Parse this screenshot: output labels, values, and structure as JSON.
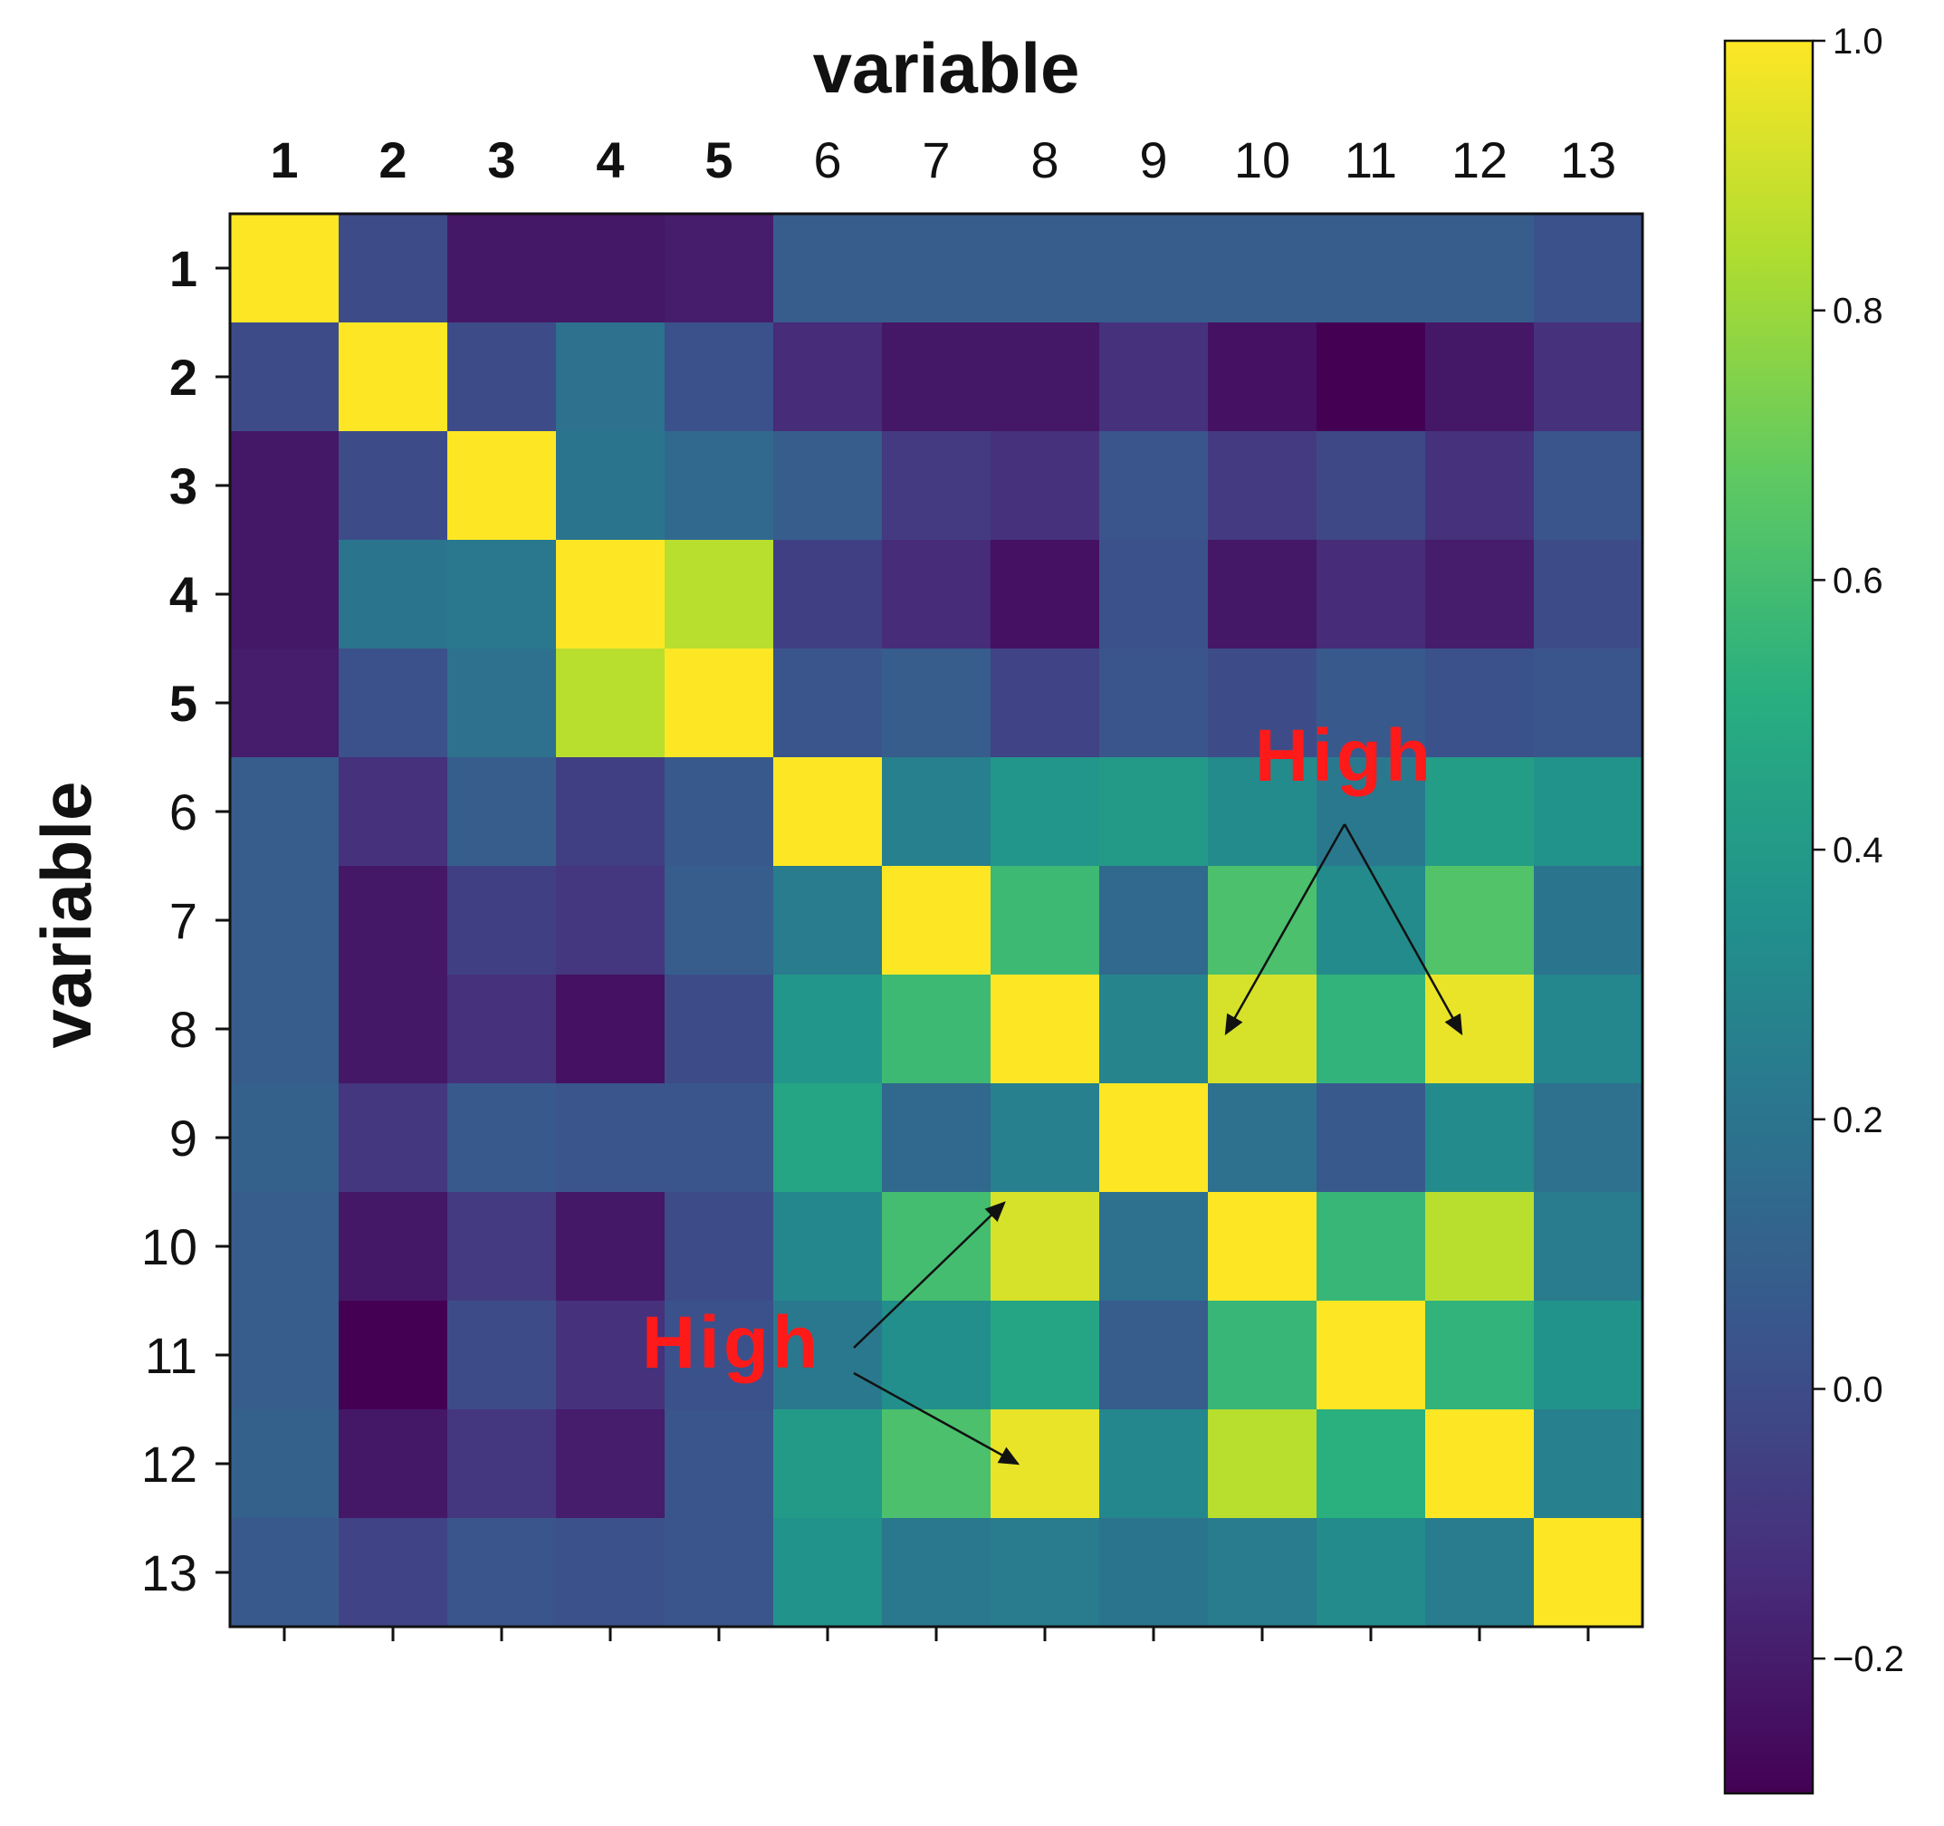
{
  "chart_data": {
    "type": "heatmap",
    "title": "variable",
    "xlabel": "variable",
    "ylabel": "variable",
    "row_labels": [
      "1",
      "2",
      "3",
      "4",
      "5",
      "6",
      "7",
      "8",
      "9",
      "10",
      "11",
      "12",
      "13"
    ],
    "col_labels": [
      "1",
      "2",
      "3",
      "4",
      "5",
      "6",
      "7",
      "8",
      "9",
      "10",
      "11",
      "12",
      "13"
    ],
    "values": [
      [
        1.0,
        0.0,
        -0.22,
        -0.22,
        -0.2,
        0.08,
        0.08,
        0.08,
        0.08,
        0.08,
        0.08,
        0.08,
        0.02
      ],
      [
        0.0,
        1.0,
        0.0,
        0.18,
        0.02,
        -0.14,
        -0.22,
        -0.22,
        -0.12,
        -0.24,
        -0.3,
        -0.22,
        -0.12
      ],
      [
        -0.22,
        0.0,
        1.0,
        0.2,
        0.14,
        0.08,
        -0.08,
        -0.12,
        0.04,
        -0.08,
        -0.02,
        -0.12,
        0.04
      ],
      [
        -0.22,
        0.2,
        0.22,
        1.0,
        0.86,
        -0.06,
        -0.14,
        -0.24,
        0.02,
        -0.22,
        -0.14,
        -0.2,
        0.0
      ],
      [
        -0.2,
        0.02,
        0.18,
        0.86,
        1.0,
        0.04,
        0.08,
        -0.04,
        0.04,
        0.0,
        0.06,
        0.02,
        0.04
      ],
      [
        0.08,
        -0.12,
        0.08,
        -0.06,
        0.06,
        1.0,
        0.26,
        0.38,
        0.4,
        0.32,
        0.22,
        0.42,
        0.36
      ],
      [
        0.08,
        -0.22,
        -0.06,
        -0.1,
        0.08,
        0.24,
        1.0,
        0.58,
        0.14,
        0.62,
        0.32,
        0.64,
        0.2
      ],
      [
        0.08,
        -0.22,
        -0.12,
        -0.24,
        0.0,
        0.38,
        0.58,
        1.0,
        0.28,
        0.92,
        0.54,
        0.96,
        0.3
      ],
      [
        0.1,
        -0.1,
        0.06,
        0.04,
        0.04,
        0.46,
        0.14,
        0.26,
        1.0,
        0.18,
        0.06,
        0.32,
        0.18
      ],
      [
        0.08,
        -0.22,
        -0.08,
        -0.22,
        0.0,
        0.3,
        0.6,
        0.92,
        0.18,
        1.0,
        0.56,
        0.86,
        0.24
      ],
      [
        0.08,
        -0.3,
        0.0,
        -0.12,
        0.02,
        0.22,
        0.34,
        0.46,
        0.08,
        0.56,
        1.0,
        0.54,
        0.36
      ],
      [
        0.1,
        -0.22,
        -0.1,
        -0.2,
        0.04,
        0.4,
        0.62,
        0.96,
        0.3,
        0.86,
        0.52,
        1.0,
        0.26
      ],
      [
        0.06,
        -0.04,
        0.04,
        0.02,
        0.04,
        0.36,
        0.22,
        0.24,
        0.2,
        0.24,
        0.32,
        0.24,
        1.0
      ]
    ],
    "colorbar": {
      "colormap": "viridis",
      "vmin": -0.3,
      "vmax": 1.0,
      "ticks": [
        -0.2,
        0.0,
        0.2,
        0.4,
        0.6,
        0.8,
        1.0
      ],
      "tick_labels": [
        "−0.2",
        "0.0",
        "0.2",
        "0.4",
        "0.6",
        "0.8",
        "1.0"
      ]
    },
    "annotations": [
      {
        "text": "High",
        "color": "#ff1a1a",
        "targets": [
          {
            "row": 8,
            "col": 10
          },
          {
            "row": 8,
            "col": 12
          }
        ]
      },
      {
        "text": "High",
        "color": "#ff1a1a",
        "targets": [
          {
            "row": 10,
            "col": 8
          },
          {
            "row": 12,
            "col": 8
          }
        ]
      }
    ],
    "grid": false
  }
}
